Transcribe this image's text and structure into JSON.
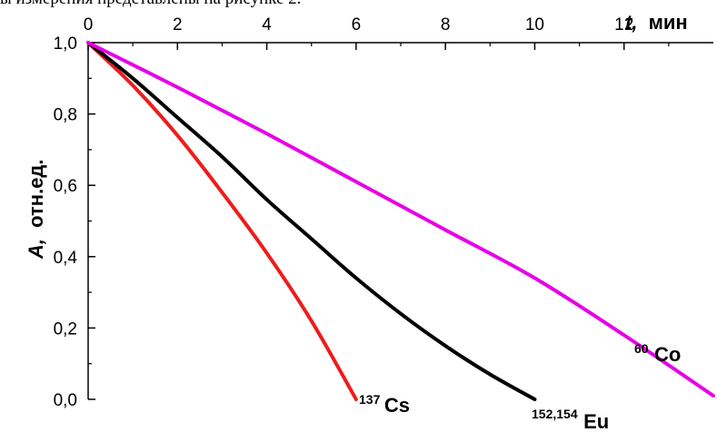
{
  "caption_fragment": "ы измерения представлены на рисунке 2.",
  "chart_data": {
    "type": "line",
    "xlabel_italic": "t,",
    "xlabel_unit": "мин",
    "ylabel_italic": "A,",
    "ylabel_unit": "отн.ед.",
    "xlim": [
      0,
      14
    ],
    "ylim": [
      0,
      1.0
    ],
    "x_ticks": [
      0,
      2,
      4,
      6,
      8,
      10,
      12
    ],
    "x_tick_labels": [
      "0",
      "2",
      "4",
      "6",
      "8",
      "10",
      "12"
    ],
    "y_ticks": [
      0,
      0.2,
      0.4,
      0.6,
      0.8,
      1.0
    ],
    "y_tick_labels": [
      "0,0",
      "0,2",
      "0,4",
      "0,6",
      "0,8",
      "1,0"
    ],
    "series": [
      {
        "name": "Cs",
        "mass_number": "137",
        "color": "#ee1c1c",
        "x": [
          0,
          1,
          2,
          3,
          4,
          5,
          6
        ],
        "y": [
          1.0,
          0.88,
          0.74,
          0.58,
          0.41,
          0.22,
          0.0
        ]
      },
      {
        "name": "Eu",
        "mass_number": "152,154",
        "color": "#000000",
        "x": [
          0,
          1,
          2,
          3,
          4,
          5,
          6,
          7,
          8,
          9,
          10
        ],
        "y": [
          1.0,
          0.9,
          0.79,
          0.68,
          0.56,
          0.45,
          0.34,
          0.24,
          0.15,
          0.07,
          0.0
        ]
      },
      {
        "name": "Co",
        "mass_number": "60",
        "color": "#e600e6",
        "x": [
          0,
          2,
          4,
          6,
          8,
          10,
          12,
          14
        ],
        "y": [
          1.0,
          0.875,
          0.745,
          0.61,
          0.475,
          0.34,
          0.18,
          0.01
        ]
      }
    ]
  }
}
